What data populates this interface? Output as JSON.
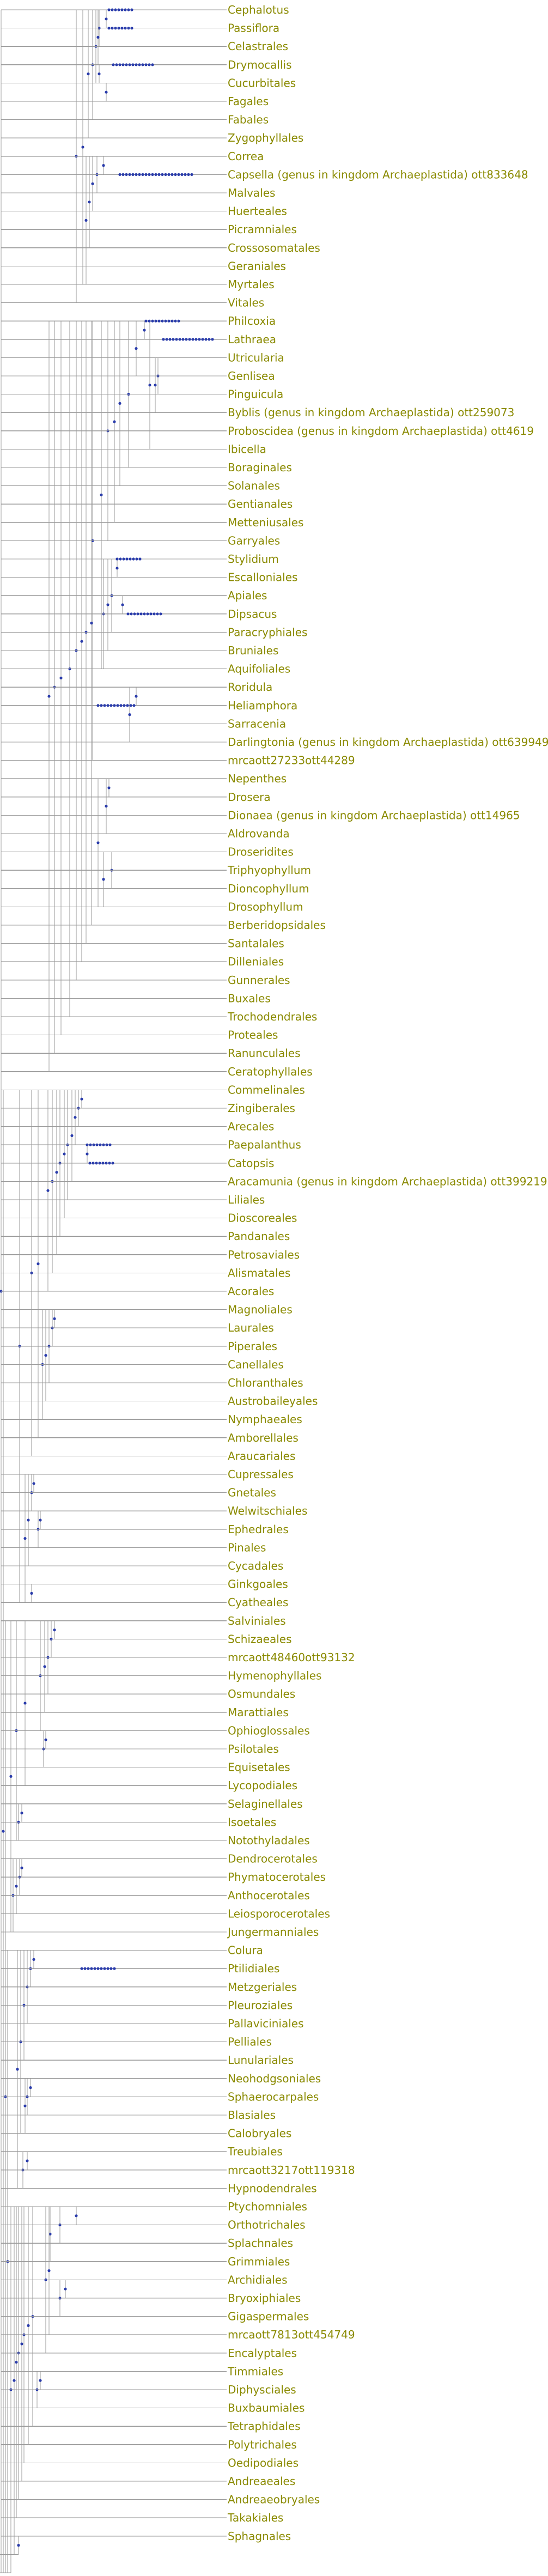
{
  "leaves": [
    "Cephalotus",
    "Passiflora",
    "Celastrales",
    "Drymocallis",
    "Cucurbitales",
    "Fagales",
    "Fabales",
    "Zygophyllales",
    "Correa",
    "Capsella (genus in kingdom Archaeplastida) ott833648",
    "Malvales",
    "Huerteales",
    "Picramniales",
    "Crossosomatales",
    "Geraniales",
    "Myrtales",
    "Vitales",
    "Philcoxia",
    "Lathraea",
    "Utricularia",
    "Genlisea",
    "Pinguicula",
    "Byblis (genus in kingdom Archaeplastida) ott259073",
    "Proboscidea (genus in kingdom Archaeplastida) ott4619",
    "Ibicella",
    "Boraginales",
    "Solanales",
    "Gentianales",
    "Metteniusales",
    "Garryales",
    "Stylidium",
    "Escalloniales",
    "Apiales",
    "Dipsacus",
    "Paracryphiales",
    "Bruniales",
    "Aquifoliales",
    "Roridula",
    "Heliamphora",
    "Sarracenia",
    "Darlingtonia (genus in kingdom Archaeplastida) ott639949",
    "mrcaott27233ott44289",
    "Nepenthes",
    "Drosera",
    "Dionaea (genus in kingdom Archaeplastida) ott14965",
    "Aldrovanda",
    "Droseridites",
    "Triphyophyllum",
    "Dioncophyllum",
    "Drosophyllum",
    "Berberidopsidales",
    "Santalales",
    "Dilleniales",
    "Gunnerales",
    "Buxales",
    "Trochodendrales",
    "Proteales",
    "Ranunculales",
    "Ceratophyllales",
    "Commelinales",
    "Zingiberales",
    "Arecales",
    "Paepalanthus",
    "Catopsis",
    "Aracamunia (genus in kingdom Archaeplastida) ott3992192",
    "Liliales",
    "Dioscoreales",
    "Pandanales",
    "Petrosaviales",
    "Alismatales",
    "Acorales",
    "Magnoliales",
    "Laurales",
    "Piperales",
    "Canellales",
    "Chloranthales",
    "Austrobaileyales",
    "Nymphaeales",
    "Amborellales",
    "Araucariales",
    "Cupressales",
    "Gnetales",
    "Welwitschiales",
    "Ephedrales",
    "Pinales",
    "Cycadales",
    "Ginkgoales",
    "Cyatheales",
    "Salviniales",
    "Schizaeales",
    "mrcaott48460ott93132",
    "Hymenophyllales",
    "Osmundales",
    "Marattiales",
    "Ophioglossales",
    "Psilotales",
    "Equisetales",
    "Lycopodiales",
    "Selaginellales",
    "Isoetales",
    "Notothyladales",
    "Dendrocerotales",
    "Phymatocerotales",
    "Anthocerotales",
    "Leiosporocerotales",
    "Jungermanniales",
    "Colura",
    "Ptilidiales",
    "Metzgeriales",
    "Pleuroziales",
    "Pallaviciniales",
    "Pelliales",
    "Lunulariales",
    "Neohodgsoniales",
    "Sphaerocarpales",
    "Blasiales",
    "Calobryales",
    "Treubiales",
    "mrcaott3217ott119318",
    "Hypnodendrales",
    "Ptychomniales",
    "Orthotrichales",
    "Splachnales",
    "Grimmiales",
    "Archidiales",
    "Bryoxiphiales",
    "Gigaspermales",
    "mrcaott7813ott454749",
    "Encalyptales",
    "Timmiales",
    "Diphysciales",
    "Buxbaumiales",
    "Tetraphidales",
    "Polytrichales",
    "Oedipodiales",
    "Andreaeales",
    "Andreaeobryales",
    "Takakiales",
    "Sphagnales"
  ],
  "colors": {
    "label": "#8a8a00",
    "branch": "#9a9a9a",
    "node": "#2a3cab"
  }
}
